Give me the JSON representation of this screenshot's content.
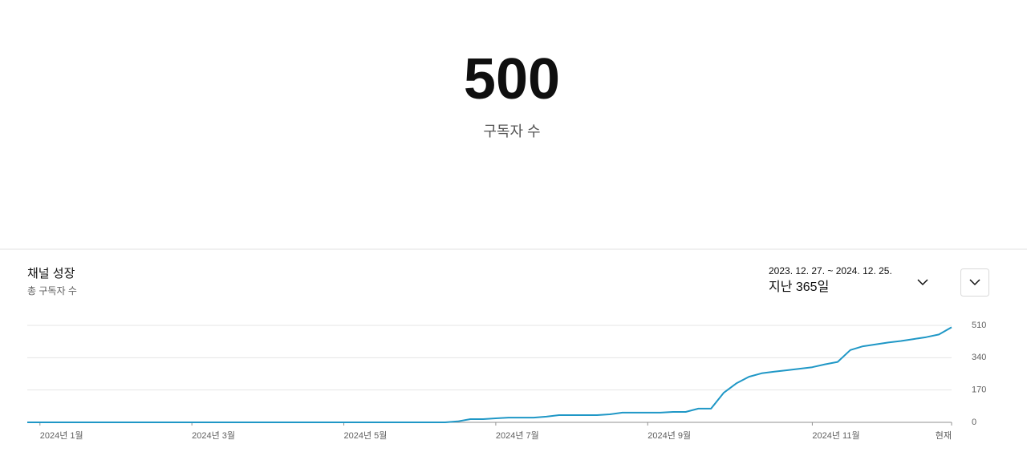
{
  "stat": {
    "value": "500",
    "label": "구독자 수"
  },
  "card": {
    "title": "채널 성장",
    "subtitle": "총 구독자 수",
    "date_range": "2023. 12. 27. ~ 2024. 12. 25.",
    "period": "지난 365일"
  },
  "chart_data": {
    "type": "line",
    "color": "#1f97c6",
    "grid": true,
    "categories": [
      null,
      "2024년 1월",
      null,
      null,
      null,
      null,
      null,
      null,
      null,
      null,
      null,
      null,
      null,
      "2024년 3월",
      null,
      null,
      null,
      null,
      null,
      null,
      null,
      null,
      null,
      null,
      null,
      "2024년 5월",
      null,
      null,
      null,
      null,
      null,
      null,
      null,
      null,
      null,
      null,
      null,
      "2024년 7월",
      null,
      null,
      null,
      null,
      null,
      null,
      null,
      null,
      null,
      null,
      null,
      "2024년 9월",
      null,
      null,
      null,
      null,
      null,
      null,
      null,
      null,
      null,
      null,
      null,
      null,
      "2024년 11월",
      null,
      null,
      null,
      null,
      null,
      null,
      null,
      null,
      null,
      null,
      "현재"
    ],
    "values": [
      0,
      0,
      0,
      0,
      0,
      0,
      0,
      0,
      0,
      0,
      0,
      0,
      0,
      0,
      0,
      0,
      0,
      0,
      0,
      0,
      0,
      0,
      0,
      0,
      0,
      0,
      0,
      0,
      0,
      0,
      0,
      0,
      0,
      0,
      5,
      17,
      17,
      21,
      25,
      25,
      25,
      30,
      38,
      38,
      38,
      38,
      42,
      51,
      51,
      51,
      51,
      55,
      55,
      72,
      72,
      155,
      205,
      240,
      258,
      267,
      274,
      282,
      290,
      305,
      318,
      380,
      400,
      410,
      420,
      428,
      438,
      448,
      462,
      500
    ],
    "ylim": [
      0,
      510
    ],
    "yticks": [
      0,
      170,
      340,
      510
    ]
  }
}
